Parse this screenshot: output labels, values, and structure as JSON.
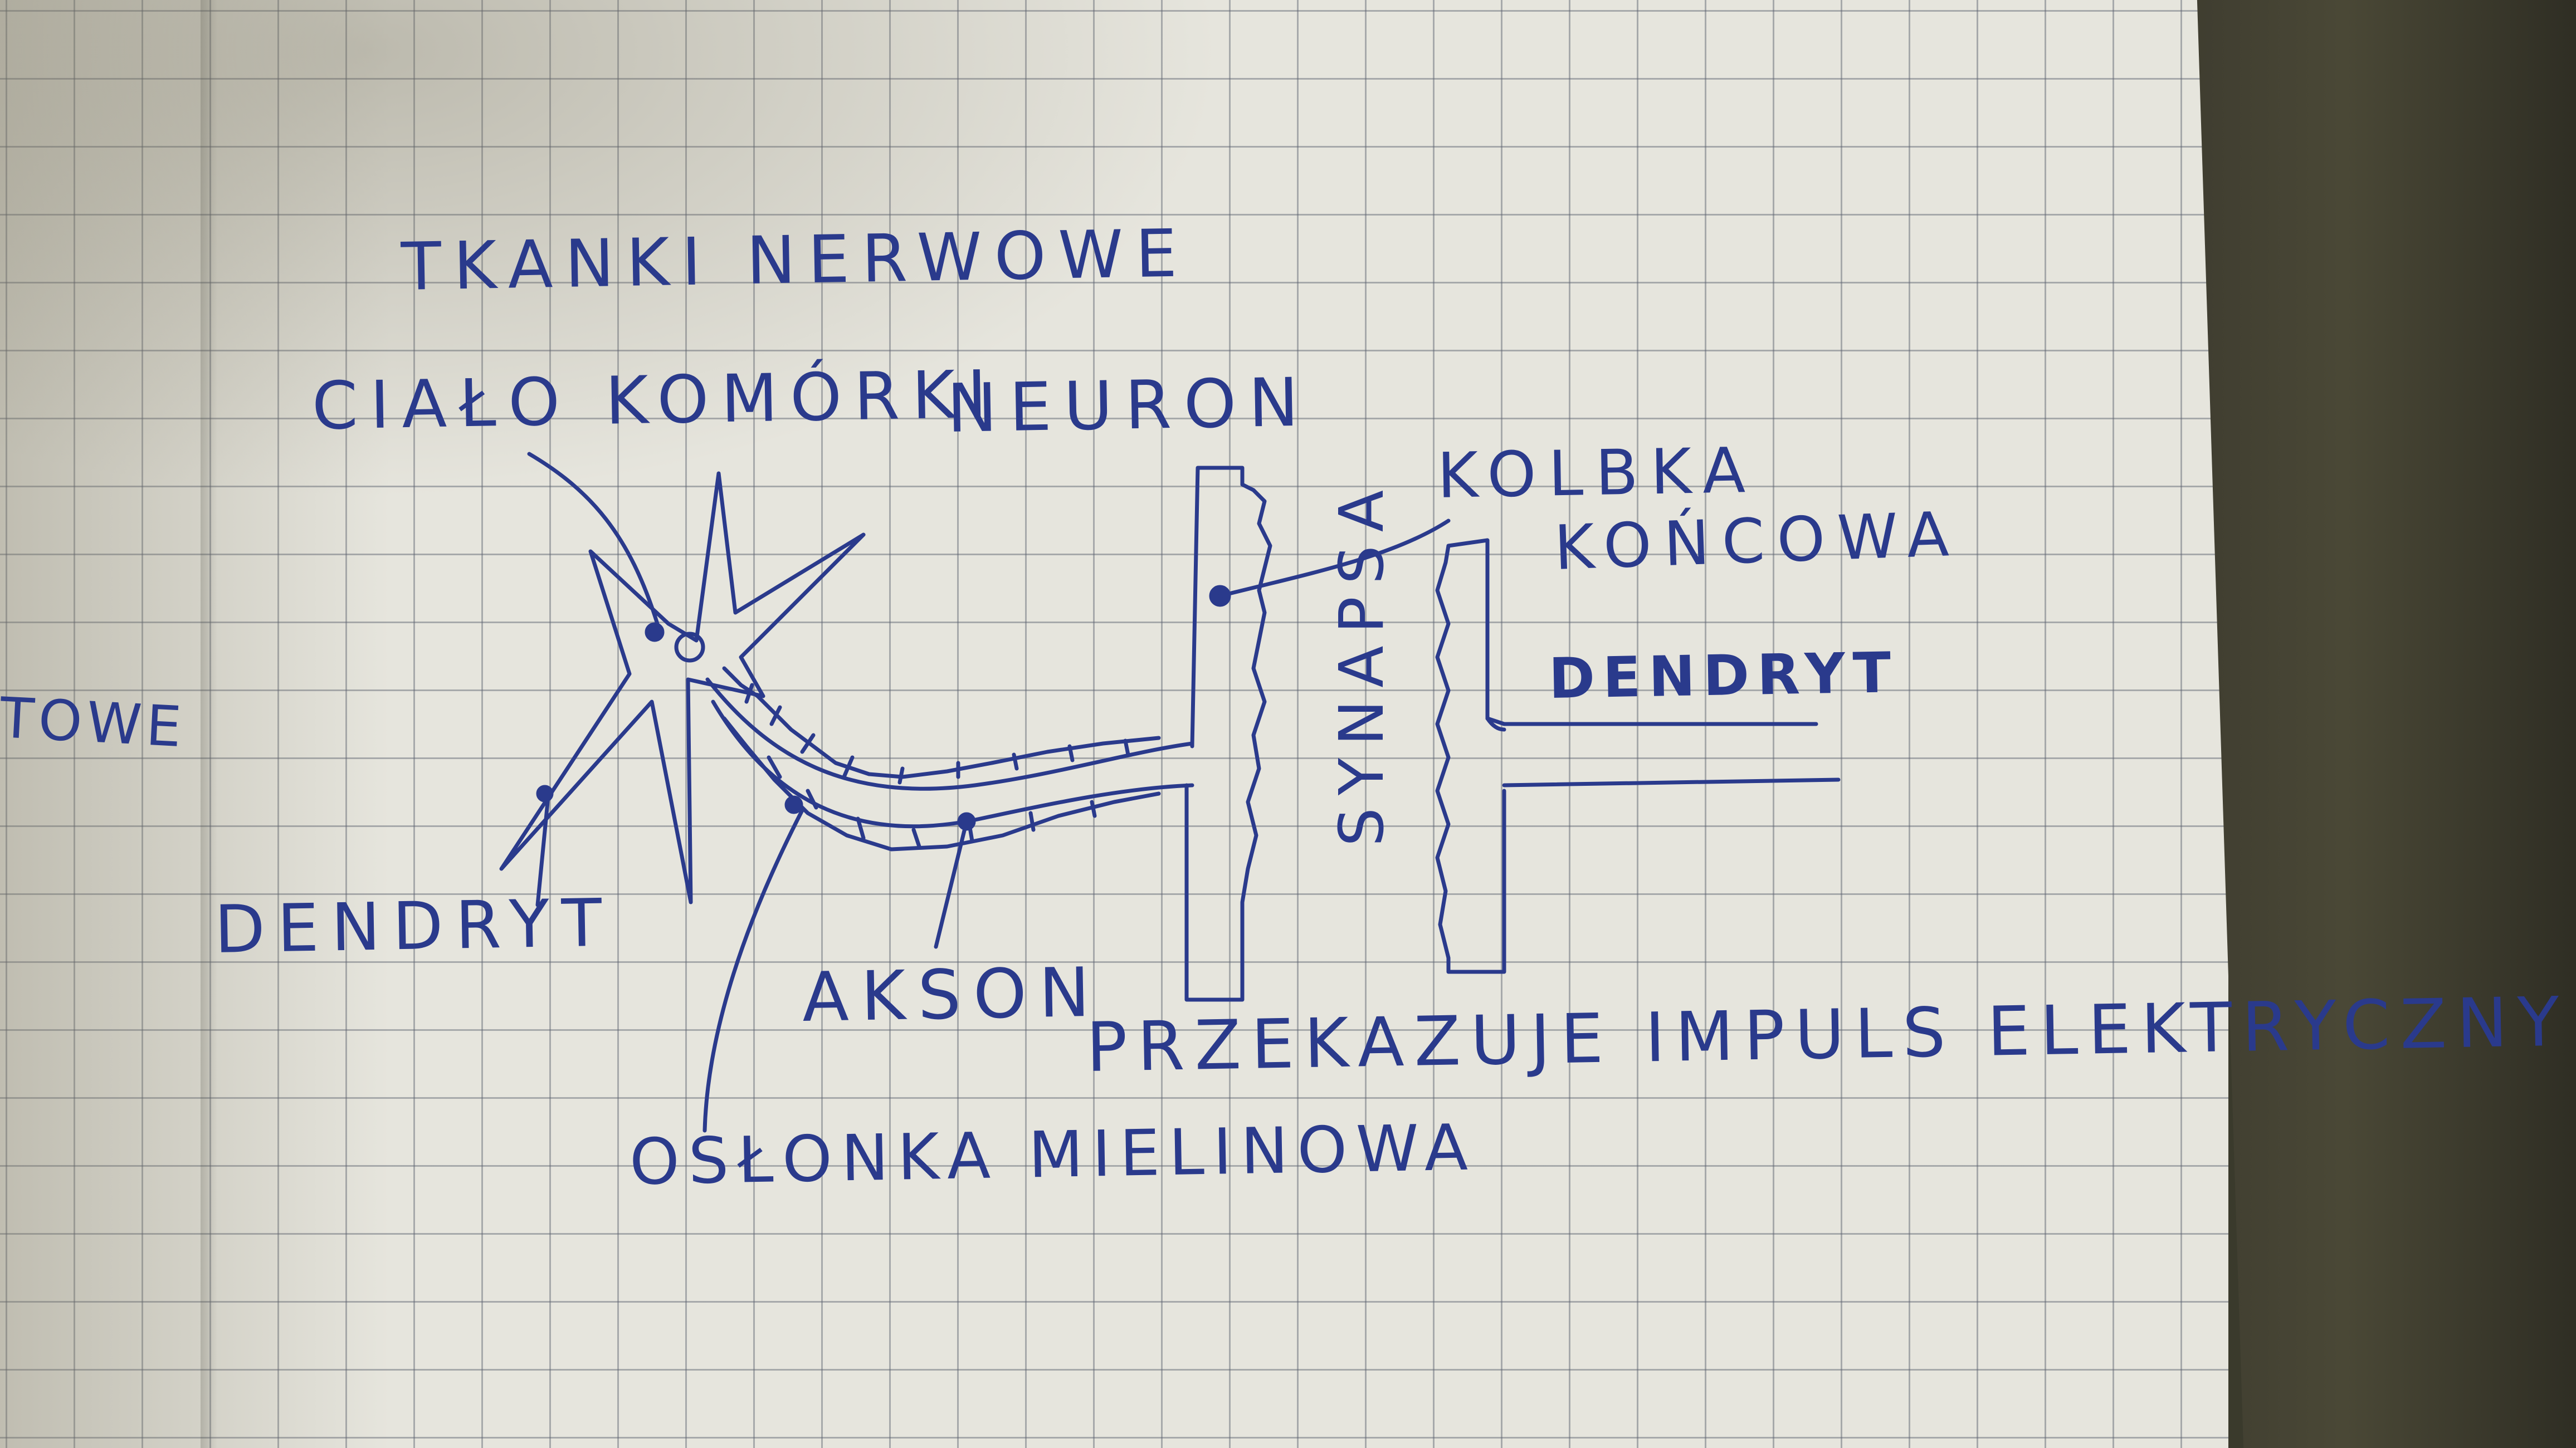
{
  "title": "TKANKI NERWOWE",
  "labels": {
    "cell_body": "CIAŁO KOMÓRKI",
    "neuron": "NEURON",
    "terminal_bulb_1": "KOLBKA",
    "terminal_bulb_2": "KOŃCOWA",
    "dendrite_right": "DENDRYT",
    "dendrite_left": "DENDRYT",
    "synapse": "SYNAPSA",
    "axon": "AKSON",
    "myelin_sheath": "OSŁONKA MIELINOWA",
    "impulse": "PRZEKAZUJE IMPULS ELEKTRYCZNY",
    "margin_fragment": "TOWE"
  },
  "colors": {
    "ink": "#2a3a8c",
    "paper": "#e6e5dd",
    "grid": "#5a5f6e",
    "surface": "#3f3d30"
  }
}
